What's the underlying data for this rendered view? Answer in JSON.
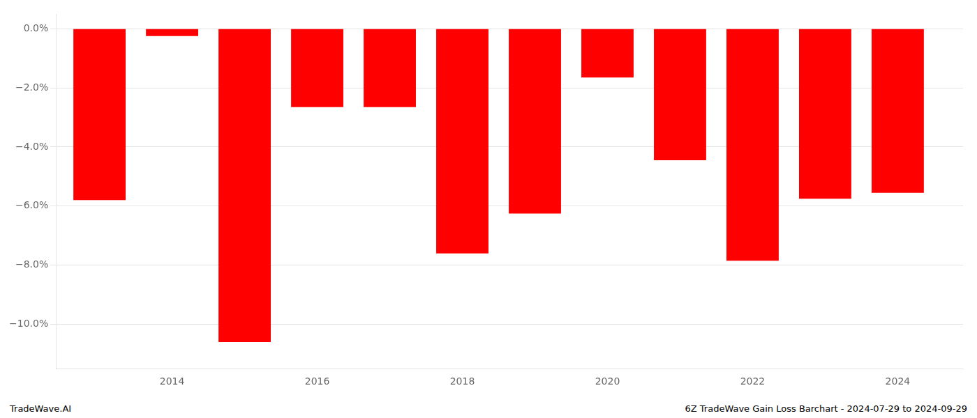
{
  "chart_data": {
    "type": "bar",
    "x": [
      2013,
      2014,
      2015,
      2016,
      2017,
      2018,
      2019,
      2020,
      2021,
      2022,
      2023,
      2024
    ],
    "values": [
      -5.8,
      -0.25,
      -10.6,
      -2.65,
      -2.65,
      -7.6,
      -6.25,
      -1.65,
      -4.45,
      -7.85,
      -5.75,
      -5.55
    ],
    "color": "#ff0000",
    "xlim": [
      2012.4,
      2024.9
    ],
    "xticks": [
      2014,
      2016,
      2018,
      2020,
      2022,
      2024
    ],
    "ylim": [
      -11.5,
      0.5
    ],
    "yticks": [
      {
        "value": 0.0,
        "label": "0.0%"
      },
      {
        "value": -2.0,
        "label": "−2.0%"
      },
      {
        "value": -4.0,
        "label": "−4.0%"
      },
      {
        "value": -6.0,
        "label": "−6.0%"
      },
      {
        "value": -8.0,
        "label": "−8.0%"
      },
      {
        "value": -10.0,
        "label": "−10.0%"
      }
    ],
    "grid": true,
    "annotations": [
      "TradeWave.AI",
      "6Z TradeWave Gain Loss Barchart - 2024-07-29 to 2024-09-29"
    ]
  }
}
